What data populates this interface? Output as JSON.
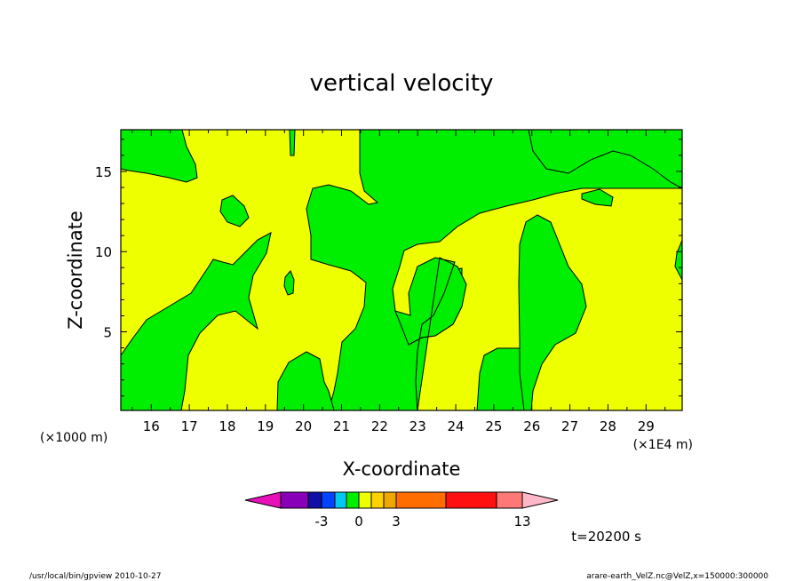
{
  "chart_data": {
    "type": "heatmap",
    "title": "vertical velocity",
    "xlabel": "X-coordinate",
    "ylabel": "Z-coordinate",
    "x_unit_left": "(×1000 m)",
    "x_unit_right": "(×1E4 m)",
    "xlim": [
      15.2,
      29.95
    ],
    "ylim": [
      0.1,
      17.6
    ],
    "x_ticks": [
      16,
      17,
      18,
      19,
      20,
      21,
      22,
      23,
      24,
      25,
      26,
      27,
      28,
      29
    ],
    "y_ticks": [
      5,
      10,
      15
    ],
    "contour_levels": [
      -3,
      0,
      3,
      13
    ],
    "fill_colors": {
      "negative": "#00ee00",
      "slightly_positive": "#eeff00"
    },
    "colorbar": {
      "colors": [
        "#e810b8",
        "#8800b8",
        "#1010a8",
        "#0044ff",
        "#00c8f0",
        "#00ee00",
        "#eeff00",
        "#ffd200",
        "#f0a800",
        "#ff6c00",
        "#ff1010",
        "#ff7878",
        "#ffb8c8"
      ],
      "tick_labels": [
        "-3",
        "0",
        "3",
        "13"
      ]
    },
    "time_label": "t=20200 s",
    "footer_left": "/usr/local/bin/gpview   2010-10-27",
    "footer_right": "arare-earth_VelZ.nc@VelZ,x=150000:300000"
  }
}
